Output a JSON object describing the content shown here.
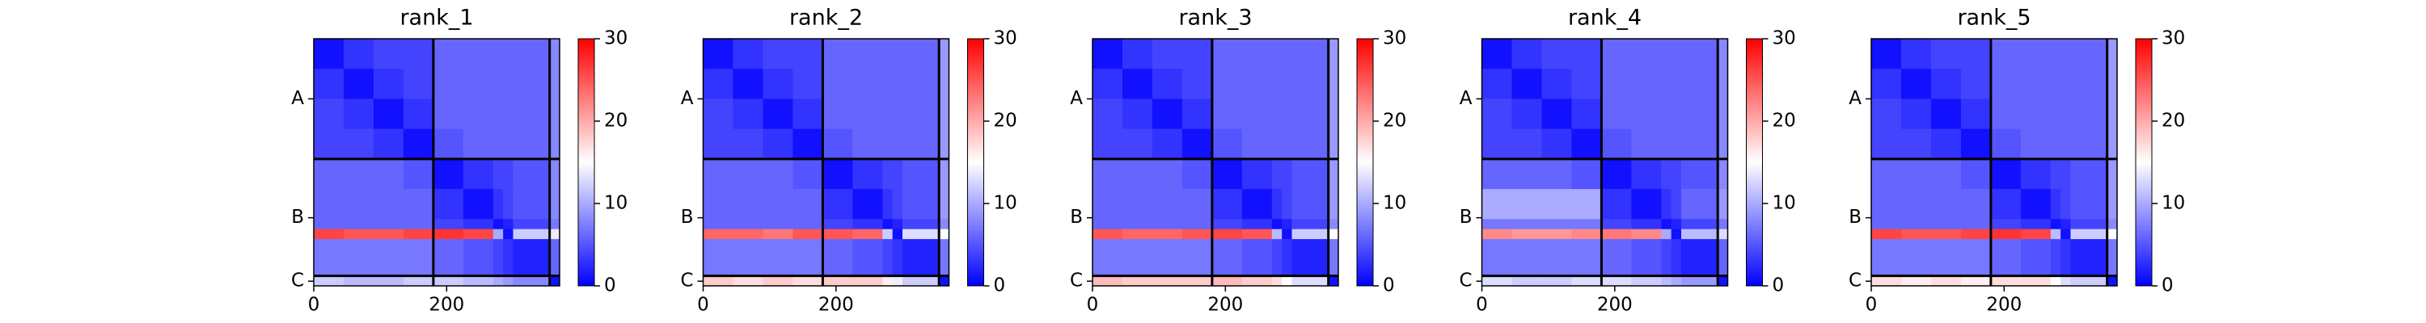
{
  "chart_data": [
    {
      "type": "heatmap",
      "title": "rank_1",
      "x_edges": [
        0,
        45,
        90,
        135,
        180,
        225,
        270,
        285,
        300,
        355,
        370
      ],
      "y_edges": [
        0,
        45,
        90,
        135,
        180,
        225,
        270,
        285,
        300,
        355,
        370
      ],
      "xlim": [
        0,
        370
      ],
      "ylim": [
        0,
        370
      ],
      "y_inverted": true,
      "xticks": [
        0,
        200
      ],
      "yticks": [
        {
          "value": 90,
          "label": "A"
        },
        {
          "value": 268,
          "label": "B"
        },
        {
          "value": 363,
          "label": "C"
        }
      ],
      "boundaries": [
        180,
        355
      ],
      "clim": [
        0,
        30
      ],
      "cticks": [
        0,
        10,
        20,
        30
      ],
      "colors": [
        "#0000ff",
        "#ffffff",
        "#ff0000"
      ],
      "matrix": [
        [
          1,
          3,
          4,
          4,
          6,
          6,
          6,
          6,
          6,
          8
        ],
        [
          3,
          1,
          3,
          4,
          6,
          6,
          6,
          6,
          6,
          8
        ],
        [
          4,
          3,
          1,
          3,
          6,
          6,
          6,
          6,
          6,
          8
        ],
        [
          4,
          4,
          3,
          1,
          5,
          6,
          6,
          6,
          6,
          8
        ],
        [
          6,
          6,
          6,
          5,
          1,
          3,
          4,
          4,
          5,
          8
        ],
        [
          6,
          6,
          6,
          6,
          3,
          1,
          3,
          4,
          5,
          8
        ],
        [
          6,
          6,
          6,
          6,
          4,
          3,
          1,
          2,
          4,
          7
        ],
        [
          26,
          25,
          25,
          26,
          27,
          26,
          10,
          1,
          12,
          14
        ],
        [
          7,
          7,
          7,
          7,
          6,
          5,
          4,
          3,
          2,
          6
        ],
        [
          12,
          11,
          11,
          12,
          12,
          11,
          10,
          9,
          8,
          1
        ]
      ]
    },
    {
      "type": "heatmap",
      "title": "rank_2",
      "x_edges": [
        0,
        45,
        90,
        135,
        180,
        225,
        270,
        285,
        300,
        355,
        370
      ],
      "y_edges": [
        0,
        45,
        90,
        135,
        180,
        225,
        270,
        285,
        300,
        355,
        370
      ],
      "xlim": [
        0,
        370
      ],
      "ylim": [
        0,
        370
      ],
      "y_inverted": true,
      "xticks": [
        0,
        200
      ],
      "yticks": [
        {
          "value": 90,
          "label": "A"
        },
        {
          "value": 268,
          "label": "B"
        },
        {
          "value": 363,
          "label": "C"
        }
      ],
      "boundaries": [
        180,
        355
      ],
      "clim": [
        0,
        30
      ],
      "cticks": [
        0,
        10,
        20,
        30
      ],
      "colors": [
        "#0000ff",
        "#ffffff",
        "#ff0000"
      ],
      "matrix": [
        [
          1,
          3,
          4,
          4,
          6,
          6,
          6,
          6,
          6,
          9
        ],
        [
          3,
          1,
          3,
          4,
          6,
          6,
          6,
          6,
          6,
          9
        ],
        [
          4,
          3,
          1,
          3,
          6,
          6,
          6,
          6,
          6,
          9
        ],
        [
          4,
          4,
          3,
          1,
          5,
          6,
          6,
          6,
          6,
          9
        ],
        [
          6,
          6,
          6,
          5,
          1,
          3,
          4,
          4,
          5,
          9
        ],
        [
          6,
          6,
          6,
          6,
          3,
          1,
          3,
          4,
          5,
          9
        ],
        [
          6,
          6,
          6,
          6,
          4,
          3,
          1,
          2,
          4,
          8
        ],
        [
          24,
          24,
          23,
          25,
          25,
          24,
          12,
          1,
          13,
          15
        ],
        [
          7,
          7,
          7,
          7,
          6,
          5,
          4,
          3,
          2,
          7
        ],
        [
          18,
          17,
          18,
          17,
          18,
          18,
          16,
          14,
          12,
          1
        ]
      ]
    },
    {
      "type": "heatmap",
      "title": "rank_3",
      "x_edges": [
        0,
        45,
        90,
        135,
        180,
        225,
        270,
        285,
        300,
        355,
        370
      ],
      "y_edges": [
        0,
        45,
        90,
        135,
        180,
        225,
        270,
        285,
        300,
        355,
        370
      ],
      "xlim": [
        0,
        370
      ],
      "ylim": [
        0,
        370
      ],
      "y_inverted": true,
      "xticks": [
        0,
        200
      ],
      "yticks": [
        {
          "value": 90,
          "label": "A"
        },
        {
          "value": 268,
          "label": "B"
        },
        {
          "value": 363,
          "label": "C"
        }
      ],
      "boundaries": [
        180,
        355
      ],
      "clim": [
        0,
        30
      ],
      "cticks": [
        0,
        10,
        20,
        30
      ],
      "colors": [
        "#0000ff",
        "#ffffff",
        "#ff0000"
      ],
      "matrix": [
        [
          1,
          3,
          4,
          4,
          6,
          6,
          6,
          6,
          6,
          9
        ],
        [
          3,
          1,
          3,
          4,
          6,
          6,
          6,
          6,
          6,
          9
        ],
        [
          4,
          3,
          1,
          3,
          6,
          6,
          6,
          6,
          6,
          9
        ],
        [
          4,
          4,
          3,
          1,
          5,
          6,
          6,
          6,
          6,
          9
        ],
        [
          6,
          6,
          6,
          5,
          1,
          3,
          4,
          4,
          5,
          9
        ],
        [
          6,
          6,
          6,
          6,
          3,
          1,
          3,
          4,
          5,
          9
        ],
        [
          6,
          6,
          6,
          6,
          4,
          3,
          1,
          2,
          4,
          8
        ],
        [
          25,
          24,
          24,
          25,
          26,
          25,
          11,
          1,
          12,
          15
        ],
        [
          7,
          7,
          7,
          7,
          6,
          5,
          4,
          3,
          2,
          7
        ],
        [
          19,
          18,
          18,
          18,
          19,
          18,
          17,
          15,
          13,
          1
        ]
      ]
    },
    {
      "type": "heatmap",
      "title": "rank_4",
      "x_edges": [
        0,
        45,
        90,
        135,
        180,
        225,
        270,
        285,
        300,
        355,
        370
      ],
      "y_edges": [
        0,
        45,
        90,
        135,
        180,
        225,
        270,
        285,
        300,
        355,
        370
      ],
      "xlim": [
        0,
        370
      ],
      "ylim": [
        0,
        370
      ],
      "y_inverted": true,
      "xticks": [
        0,
        200
      ],
      "yticks": [
        {
          "value": 90,
          "label": "A"
        },
        {
          "value": 268,
          "label": "B"
        },
        {
          "value": 363,
          "label": "C"
        }
      ],
      "boundaries": [
        180,
        355
      ],
      "clim": [
        0,
        30
      ],
      "cticks": [
        0,
        10,
        20,
        30
      ],
      "colors": [
        "#0000ff",
        "#ffffff",
        "#ff0000"
      ],
      "matrix": [
        [
          1,
          3,
          4,
          4,
          6,
          6,
          6,
          6,
          6,
          8
        ],
        [
          3,
          1,
          3,
          4,
          6,
          6,
          6,
          6,
          6,
          8
        ],
        [
          4,
          3,
          1,
          3,
          6,
          6,
          6,
          6,
          6,
          8
        ],
        [
          4,
          4,
          3,
          1,
          5,
          6,
          6,
          6,
          6,
          8
        ],
        [
          6,
          6,
          6,
          5,
          1,
          3,
          4,
          4,
          5,
          8
        ],
        [
          10,
          10,
          10,
          10,
          3,
          1,
          3,
          4,
          6,
          9
        ],
        [
          7,
          7,
          7,
          7,
          4,
          3,
          1,
          2,
          4,
          7
        ],
        [
          22,
          21,
          21,
          22,
          23,
          22,
          10,
          1,
          11,
          13
        ],
        [
          7,
          7,
          7,
          7,
          6,
          5,
          4,
          3,
          2,
          6
        ],
        [
          13,
          12,
          12,
          13,
          13,
          12,
          11,
          10,
          9,
          1
        ]
      ]
    },
    {
      "type": "heatmap",
      "title": "rank_5",
      "x_edges": [
        0,
        45,
        90,
        135,
        180,
        225,
        270,
        285,
        300,
        355,
        370
      ],
      "y_edges": [
        0,
        45,
        90,
        135,
        180,
        225,
        270,
        285,
        300,
        355,
        370
      ],
      "xlim": [
        0,
        370
      ],
      "ylim": [
        0,
        370
      ],
      "y_inverted": true,
      "xticks": [
        0,
        200
      ],
      "yticks": [
        {
          "value": 90,
          "label": "A"
        },
        {
          "value": 268,
          "label": "B"
        },
        {
          "value": 363,
          "label": "C"
        }
      ],
      "boundaries": [
        180,
        355
      ],
      "clim": [
        0,
        30
      ],
      "cticks": [
        0,
        10,
        20,
        30
      ],
      "colors": [
        "#0000ff",
        "#ffffff",
        "#ff0000"
      ],
      "matrix": [
        [
          1,
          3,
          4,
          4,
          6,
          6,
          6,
          6,
          6,
          9
        ],
        [
          3,
          1,
          3,
          4,
          6,
          6,
          6,
          6,
          6,
          9
        ],
        [
          4,
          3,
          1,
          3,
          6,
          6,
          6,
          6,
          6,
          9
        ],
        [
          4,
          4,
          3,
          1,
          5,
          6,
          6,
          6,
          6,
          9
        ],
        [
          6,
          6,
          6,
          5,
          1,
          3,
          4,
          4,
          5,
          9
        ],
        [
          6,
          6,
          6,
          6,
          3,
          1,
          3,
          4,
          5,
          9
        ],
        [
          6,
          6,
          6,
          6,
          4,
          3,
          1,
          2,
          4,
          8
        ],
        [
          26,
          25,
          25,
          26,
          27,
          26,
          11,
          1,
          12,
          15
        ],
        [
          7,
          7,
          7,
          7,
          6,
          5,
          4,
          3,
          2,
          7
        ],
        [
          17,
          16,
          17,
          16,
          17,
          17,
          15,
          13,
          12,
          1
        ]
      ]
    }
  ]
}
